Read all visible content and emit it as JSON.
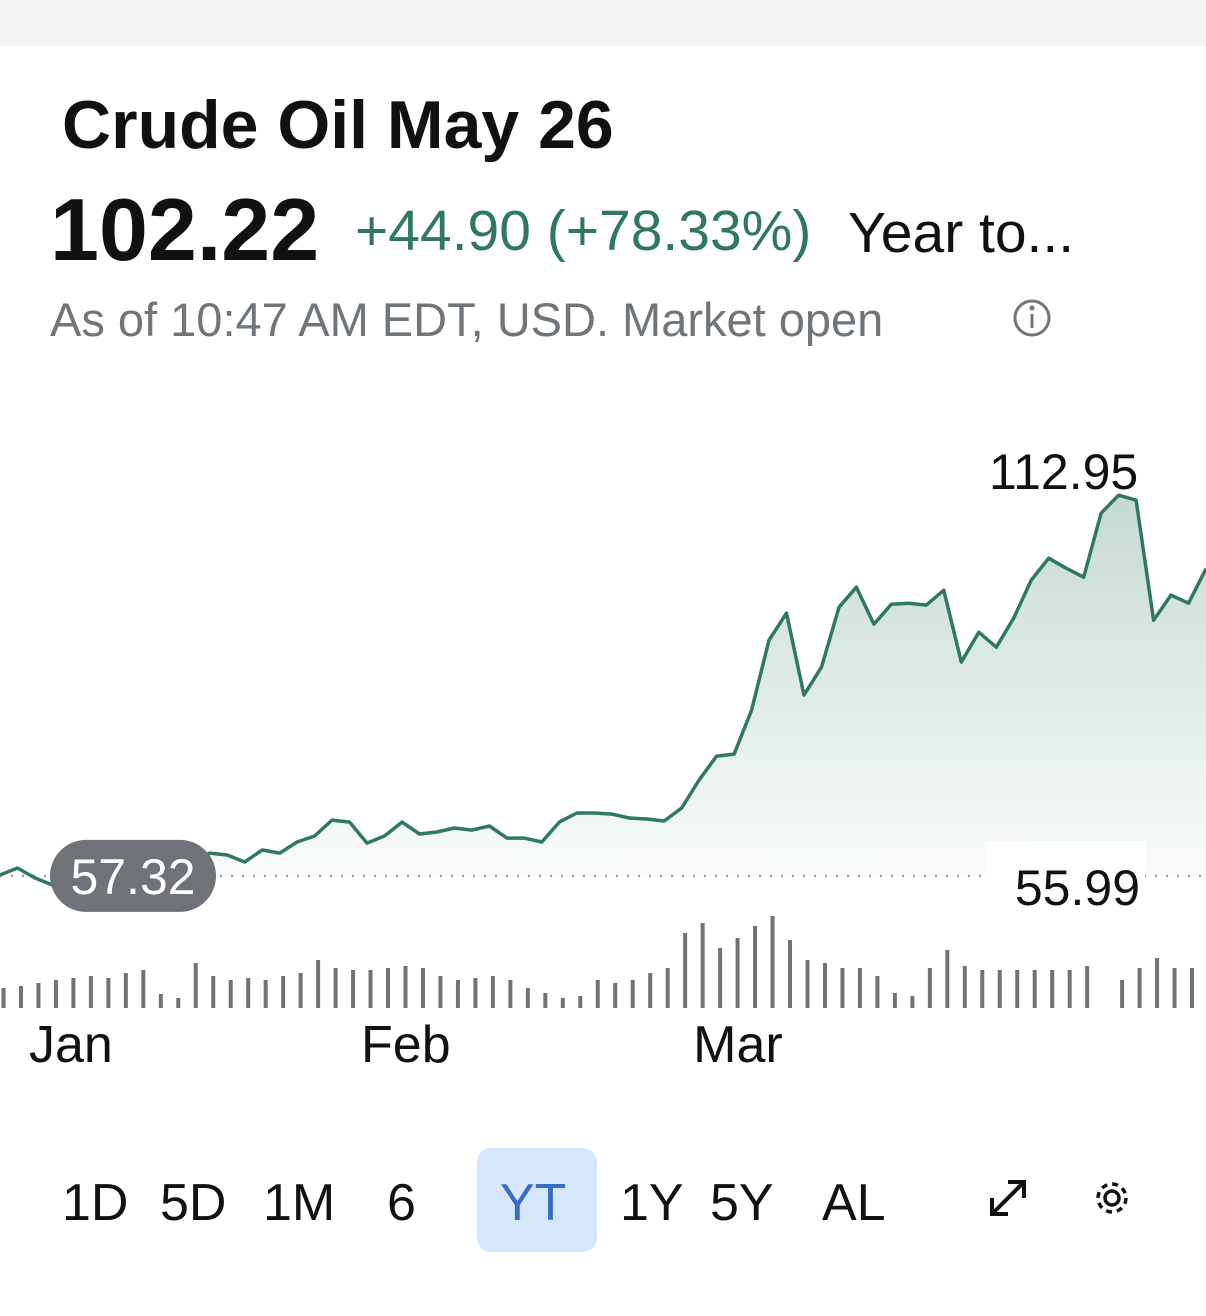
{
  "header": {
    "title": "Crude Oil May 26",
    "price": "102.22",
    "change": "+44.90 (+78.33%)",
    "period": "Year to...",
    "status": "As of 10:47 AM EDT, USD. Market open"
  },
  "chart_data": {
    "type": "line",
    "categories": [
      null,
      null,
      "Jan",
      null,
      null,
      null,
      null,
      null,
      null,
      null,
      null,
      null,
      null,
      null,
      null,
      null,
      null,
      null,
      null,
      null,
      null,
      "Feb",
      null,
      null,
      null,
      null,
      null,
      null,
      null,
      null,
      null,
      null,
      null,
      null,
      null,
      null,
      null,
      null,
      null,
      null,
      "Mar",
      null,
      null,
      null,
      null,
      null,
      null,
      null,
      null,
      null,
      null,
      null,
      null,
      null,
      null,
      null,
      null,
      null,
      null,
      null,
      null,
      null,
      null,
      null,
      null,
      null,
      null,
      null,
      null,
      null
    ],
    "values": [
      57.45,
      58.47,
      57.01,
      55.99,
      57.74,
      59.35,
      60.37,
      61.1,
      61.83,
      62.27,
      60.37,
      59.35,
      60.66,
      60.37,
      59.35,
      61.1,
      60.66,
      62.27,
      63.15,
      65.48,
      65.19,
      62.12,
      63.15,
      65.19,
      63.44,
      63.73,
      64.32,
      64.02,
      64.61,
      62.85,
      62.85,
      62.27,
      65.19,
      66.51,
      66.51,
      66.36,
      65.78,
      65.63,
      65.34,
      67.24,
      71.33,
      74.83,
      75.12,
      81.55,
      91.77,
      95.72,
      83.74,
      87.83,
      96.59,
      99.51,
      94.11,
      97.03,
      97.18,
      96.89,
      99.08,
      88.56,
      92.94,
      90.75,
      94.99,
      100.54,
      103.75,
      102.29,
      100.97,
      110.32,
      112.95,
      112.22,
      94.69,
      98.35,
      97.18,
      102.22
    ],
    "volumes": [
      20,
      22,
      25,
      28,
      30,
      32,
      30,
      35,
      38,
      14,
      10,
      45,
      32,
      28,
      30,
      28,
      32,
      35,
      48,
      40,
      38,
      38,
      40,
      42,
      40,
      32,
      28,
      30,
      32,
      28,
      20,
      15,
      10,
      12,
      28,
      25,
      28,
      35,
      40,
      75,
      85,
      60,
      70,
      82,
      92,
      68,
      48,
      45,
      40,
      40,
      32,
      15,
      12,
      40,
      58,
      42,
      38,
      38,
      38,
      38,
      38,
      38,
      42,
      null,
      28,
      40,
      50,
      40,
      40,
      null
    ],
    "vlim": [
      0,
      100
    ],
    "color": "#2f7a5e",
    "ylim": [
      50,
      120
    ],
    "high": 112.95,
    "low": 55.99,
    "previous_close": 57.32
  },
  "ranges": [
    {
      "label": "1D"
    },
    {
      "label": "5D"
    },
    {
      "label": "1M"
    },
    {
      "label": "6"
    },
    {
      "label": "YT",
      "selected": true
    },
    {
      "label": "1Y"
    },
    {
      "label": "5Y"
    },
    {
      "label": "AL"
    }
  ]
}
